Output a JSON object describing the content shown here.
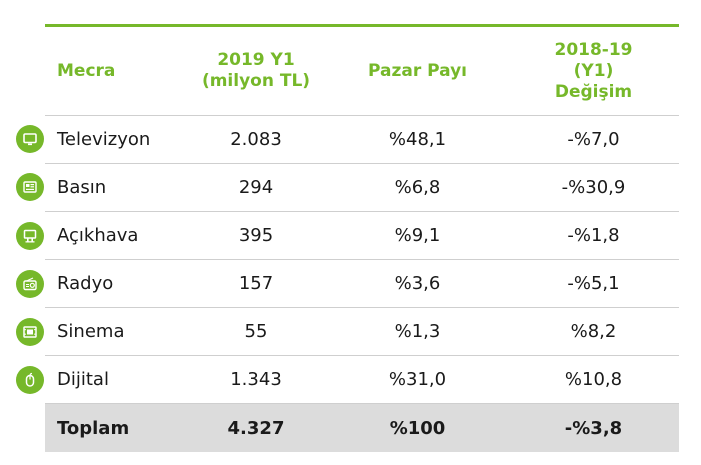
{
  "header": {
    "media": "Mecra",
    "value_line1": "2019 Y1",
    "value_line2": "(milyon TL)",
    "share": "Pazar Payı",
    "change_line1": "2018-19",
    "change_line2": "(Y1)",
    "change_line3": "Değişim"
  },
  "rows": [
    {
      "media": "Televizyon",
      "value": "2.083",
      "share": "%48,1",
      "change": "-%7,0",
      "icon": "television-icon"
    },
    {
      "media": "Basın",
      "value": "294",
      "share": "%6,8",
      "change": "-%30,9",
      "icon": "newspaper-icon"
    },
    {
      "media": "Açıkhava",
      "value": "395",
      "share": "%9,1",
      "change": "-%1,8",
      "icon": "billboard-icon"
    },
    {
      "media": "Radyo",
      "value": "157",
      "share": "%3,6",
      "change": "-%5,1",
      "icon": "radio-icon"
    },
    {
      "media": "Sinema",
      "value": "55",
      "share": "%1,3",
      "change": "%8,2",
      "icon": "film-icon"
    },
    {
      "media": "Dijital",
      "value": "1.343",
      "share": "%31,0",
      "change": "%10,8",
      "icon": "mouse-icon"
    }
  ],
  "total": {
    "media": "Toplam",
    "value": "4.327",
    "share": "%100",
    "change": "-%3,8"
  },
  "colors": {
    "accent": "#76b82a",
    "total_row_bg": "#dcdcdc"
  },
  "chart_data": {
    "type": "table",
    "columns": [
      "Mecra",
      "2019 Y1 (milyon TL)",
      "Pazar Payı",
      "2018-19 (Y1) Değişim"
    ],
    "rows": [
      [
        "Televizyon",
        "2.083",
        "%48,1",
        "-%7,0"
      ],
      [
        "Basın",
        "294",
        "%6,8",
        "-%30,9"
      ],
      [
        "Açıkhava",
        "395",
        "%9,1",
        "-%1,8"
      ],
      [
        "Radyo",
        "157",
        "%3,6",
        "-%5,1"
      ],
      [
        "Sinema",
        "55",
        "%1,3",
        "%8,2"
      ],
      [
        "Dijital",
        "1.343",
        "%31,0",
        "%10,8"
      ],
      [
        "Toplam",
        "4.327",
        "%100",
        "-%3,8"
      ]
    ]
  }
}
